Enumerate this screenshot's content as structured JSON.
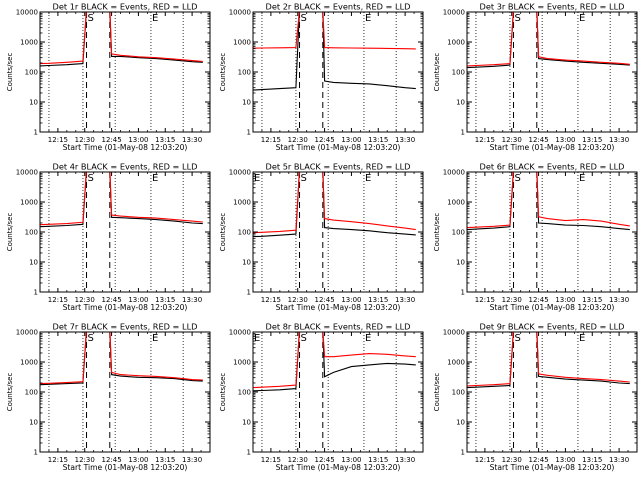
{
  "figure": {
    "background": "#ffffff",
    "axis_color": "#000000"
  },
  "legend": {
    "text": "BLACK = Events, RED = LLD",
    "events_color": "#000000",
    "lld_color": "#ff0000"
  },
  "chart_data": [
    {
      "type": "line",
      "title": "Det 1r BLACK = Events, RED = LLD",
      "xlabel": "Start Time (01-May-08 12:03:20)",
      "ylabel": "Counts/sec",
      "yscale": "log",
      "ylim": [
        1,
        10000
      ],
      "xlim": [
        "12:05",
        "13:40"
      ],
      "xticks": [
        "12:15",
        "12:30",
        "12:45",
        "13:00",
        "13:15",
        "13:30"
      ],
      "yticks": [
        "1",
        "10",
        "100",
        "1000",
        "10000"
      ],
      "dotted_lines": [
        "12:10",
        "12:29",
        "12:47",
        "13:07",
        "13:25"
      ],
      "dashed_lines": [
        "12:31",
        "12:44"
      ],
      "markers": [
        {
          "label": "S",
          "x": "12:31"
        },
        {
          "label": "E",
          "x": "13:07"
        }
      ],
      "x": [
        "12:05",
        "12:10",
        "12:20",
        "12:29",
        "12:31",
        "12:44",
        "12:45",
        "12:50",
        "13:00",
        "13:10",
        "13:20",
        "13:30",
        "13:36"
      ],
      "series": [
        {
          "name": "Events",
          "color": "#000000",
          "values": [
            160,
            165,
            175,
            190,
            12000,
            12000,
            330,
            330,
            300,
            280,
            250,
            220,
            210
          ]
        },
        {
          "name": "LLD",
          "color": "#ff0000",
          "values": [
            190,
            195,
            210,
            230,
            12000,
            12000,
            400,
            360,
            320,
            300,
            270,
            240,
            225
          ]
        }
      ]
    },
    {
      "type": "line",
      "title": "Det 2r BLACK = Events, RED = LLD",
      "xlabel": "Start Time (01-May-08 12:03:20)",
      "ylabel": "Counts/sec",
      "yscale": "log",
      "ylim": [
        1,
        10000
      ],
      "xlim": [
        "12:05",
        "13:40"
      ],
      "xticks": [
        "12:15",
        "12:30",
        "12:45",
        "13:00",
        "13:15",
        "13:30"
      ],
      "yticks": [
        "1",
        "10",
        "100",
        "1000",
        "10000"
      ],
      "dotted_lines": [
        "12:10",
        "12:29",
        "12:47",
        "13:07",
        "13:25"
      ],
      "dashed_lines": [
        "12:31",
        "12:44"
      ],
      "markers": [
        {
          "label": "S",
          "x": "12:31"
        },
        {
          "label": "E",
          "x": "13:07"
        }
      ],
      "x": [
        "12:05",
        "12:10",
        "12:20",
        "12:29",
        "12:31",
        "12:44",
        "12:45",
        "12:50",
        "13:00",
        "13:10",
        "13:20",
        "13:30",
        "13:36"
      ],
      "series": [
        {
          "name": "Events",
          "color": "#000000",
          "values": [
            25,
            26,
            28,
            30,
            12000,
            12000,
            50,
            45,
            42,
            40,
            35,
            30,
            28
          ]
        },
        {
          "name": "LLD",
          "color": "#ff0000",
          "values": [
            620,
            630,
            640,
            650,
            12000,
            12000,
            650,
            640,
            630,
            620,
            610,
            600,
            590
          ]
        }
      ]
    },
    {
      "type": "line",
      "title": "Det 3r BLACK = Events, RED = LLD",
      "xlabel": "Start Time (01-May-08 12:03:20)",
      "ylabel": "Counts/sec",
      "yscale": "log",
      "ylim": [
        1,
        10000
      ],
      "xlim": [
        "12:05",
        "13:40"
      ],
      "xticks": [
        "12:15",
        "12:30",
        "12:45",
        "13:00",
        "13:15",
        "13:30"
      ],
      "yticks": [
        "1",
        "10",
        "100",
        "1000",
        "10000"
      ],
      "dotted_lines": [
        "12:10",
        "12:29",
        "12:47",
        "13:07",
        "13:25"
      ],
      "dashed_lines": [
        "12:31",
        "12:44"
      ],
      "markers": [
        {
          "label": "S",
          "x": "12:31"
        },
        {
          "label": "E",
          "x": "13:07"
        }
      ],
      "x": [
        "12:05",
        "12:10",
        "12:20",
        "12:29",
        "12:31",
        "12:44",
        "12:45",
        "12:50",
        "13:00",
        "13:10",
        "13:20",
        "13:30",
        "13:36"
      ],
      "series": [
        {
          "name": "Events",
          "color": "#000000",
          "values": [
            140,
            145,
            155,
            170,
            12000,
            12000,
            280,
            260,
            230,
            210,
            195,
            180,
            170
          ]
        },
        {
          "name": "LLD",
          "color": "#ff0000",
          "values": [
            160,
            165,
            175,
            190,
            12000,
            12000,
            320,
            280,
            250,
            230,
            210,
            195,
            180
          ]
        }
      ]
    },
    {
      "type": "line",
      "title": "Det 4r BLACK = Events, RED = LLD",
      "xlabel": "Start Time (01-May-08 12:03:20)",
      "ylabel": "Counts/sec",
      "yscale": "log",
      "ylim": [
        1,
        10000
      ],
      "xlim": [
        "12:05",
        "13:40"
      ],
      "xticks": [
        "12:15",
        "12:30",
        "12:45",
        "13:00",
        "13:15",
        "13:30"
      ],
      "yticks": [
        "1",
        "10",
        "100",
        "1000",
        "10000"
      ],
      "dotted_lines": [
        "12:10",
        "12:29",
        "12:47",
        "13:07",
        "13:25"
      ],
      "dashed_lines": [
        "12:31",
        "12:44"
      ],
      "markers": [
        {
          "label": "S",
          "x": "12:31"
        },
        {
          "label": "E",
          "x": "13:07"
        }
      ],
      "x": [
        "12:05",
        "12:10",
        "12:20",
        "12:29",
        "12:31",
        "12:44",
        "12:45",
        "12:50",
        "13:00",
        "13:10",
        "13:20",
        "13:30",
        "13:36"
      ],
      "series": [
        {
          "name": "Events",
          "color": "#000000",
          "values": [
            150,
            155,
            165,
            180,
            12000,
            12000,
            310,
            300,
            280,
            260,
            230,
            200,
            190
          ]
        },
        {
          "name": "LLD",
          "color": "#ff0000",
          "values": [
            175,
            180,
            190,
            210,
            12000,
            12000,
            370,
            340,
            310,
            290,
            260,
            230,
            215
          ]
        }
      ]
    },
    {
      "type": "line",
      "title": "Det 5r BLACK = Events, RED = LLD",
      "xlabel": "Start Time (01-May-08 12:03:20)",
      "ylabel": "Counts/sec",
      "yscale": "log",
      "ylim": [
        1,
        10000
      ],
      "xlim": [
        "12:05",
        "13:40"
      ],
      "xticks": [
        "12:15",
        "12:30",
        "12:45",
        "13:00",
        "13:15",
        "13:30"
      ],
      "yticks": [
        "1",
        "10",
        "100",
        "1000",
        "10000"
      ],
      "dotted_lines": [
        "12:10",
        "12:29",
        "12:47",
        "13:07",
        "13:25"
      ],
      "dashed_lines": [
        "12:31",
        "12:44"
      ],
      "markers": [
        {
          "label": "E",
          "x": "12:05"
        },
        {
          "label": "S",
          "x": "12:31"
        },
        {
          "label": "E",
          "x": "13:07"
        }
      ],
      "x": [
        "12:05",
        "12:10",
        "12:20",
        "12:29",
        "12:31",
        "12:44",
        "12:45",
        "12:50",
        "13:00",
        "13:10",
        "13:20",
        "13:30",
        "13:36"
      ],
      "series": [
        {
          "name": "Events",
          "color": "#000000",
          "values": [
            70,
            72,
            78,
            85,
            12000,
            12000,
            140,
            130,
            120,
            110,
            95,
            85,
            80
          ]
        },
        {
          "name": "LLD",
          "color": "#ff0000",
          "values": [
            95,
            98,
            105,
            115,
            12000,
            12000,
            280,
            250,
            220,
            190,
            160,
            135,
            120
          ]
        }
      ]
    },
    {
      "type": "line",
      "title": "Det 6r BLACK = Events, RED = LLD",
      "xlabel": "Start Time (01-May-08 12:03:20)",
      "ylabel": "Counts/sec",
      "yscale": "log",
      "ylim": [
        1,
        10000
      ],
      "xlim": [
        "12:05",
        "13:40"
      ],
      "xticks": [
        "12:15",
        "12:30",
        "12:45",
        "13:00",
        "13:15",
        "13:30"
      ],
      "yticks": [
        "1",
        "10",
        "100",
        "1000",
        "10000"
      ],
      "dotted_lines": [
        "12:10",
        "12:29",
        "12:47",
        "13:07",
        "13:25"
      ],
      "dashed_lines": [
        "12:31",
        "12:44"
      ],
      "markers": [
        {
          "label": "S",
          "x": "12:31"
        },
        {
          "label": "E",
          "x": "13:07"
        }
      ],
      "x": [
        "12:05",
        "12:10",
        "12:20",
        "12:29",
        "12:31",
        "12:44",
        "12:45",
        "12:50",
        "13:00",
        "13:10",
        "13:20",
        "13:30",
        "13:36"
      ],
      "series": [
        {
          "name": "Events",
          "color": "#000000",
          "values": [
            120,
            125,
            135,
            150,
            12000,
            12000,
            200,
            190,
            170,
            165,
            150,
            130,
            120
          ]
        },
        {
          "name": "LLD",
          "color": "#ff0000",
          "values": [
            140,
            145,
            155,
            170,
            12000,
            12000,
            320,
            280,
            240,
            260,
            230,
            180,
            160
          ]
        }
      ]
    },
    {
      "type": "line",
      "title": "Det 7r BLACK = Events, RED = LLD",
      "xlabel": "Start Time (01-May-08 12:03:20)",
      "ylabel": "Counts/sec",
      "yscale": "log",
      "ylim": [
        1,
        10000
      ],
      "xlim": [
        "12:05",
        "13:40"
      ],
      "xticks": [
        "12:15",
        "12:30",
        "12:45",
        "13:00",
        "13:15",
        "13:30"
      ],
      "yticks": [
        "1",
        "10",
        "100",
        "1000",
        "10000"
      ],
      "dotted_lines": [
        "12:10",
        "12:29",
        "12:47",
        "13:07",
        "13:25"
      ],
      "dashed_lines": [
        "12:31",
        "12:44"
      ],
      "markers": [
        {
          "label": "S",
          "x": "12:31"
        },
        {
          "label": "E",
          "x": "13:07"
        }
      ],
      "x": [
        "12:05",
        "12:10",
        "12:20",
        "12:29",
        "12:31",
        "12:44",
        "12:45",
        "12:50",
        "13:00",
        "13:10",
        "13:20",
        "13:30",
        "13:36"
      ],
      "series": [
        {
          "name": "Events",
          "color": "#000000",
          "values": [
            175,
            180,
            190,
            200,
            12000,
            12000,
            380,
            340,
            310,
            300,
            280,
            240,
            230
          ]
        },
        {
          "name": "LLD",
          "color": "#ff0000",
          "values": [
            190,
            195,
            205,
            220,
            12000,
            12000,
            450,
            380,
            350,
            330,
            300,
            260,
            250
          ]
        }
      ]
    },
    {
      "type": "line",
      "title": "Det 8r BLACK = Events, RED = LLD",
      "xlabel": "Start Time (01-May-08 12:03:20)",
      "ylabel": "Counts/sec",
      "yscale": "log",
      "ylim": [
        1,
        10000
      ],
      "xlim": [
        "12:05",
        "13:40"
      ],
      "xticks": [
        "12:15",
        "12:30",
        "12:45",
        "13:00",
        "13:15",
        "13:30"
      ],
      "yticks": [
        "1",
        "10",
        "100",
        "1000",
        "10000"
      ],
      "dotted_lines": [
        "12:10",
        "12:29",
        "12:47",
        "13:07",
        "13:25"
      ],
      "dashed_lines": [
        "12:31",
        "12:44"
      ],
      "markers": [
        {
          "label": "E",
          "x": "12:05"
        },
        {
          "label": "S",
          "x": "12:31"
        },
        {
          "label": "E",
          "x": "13:07"
        }
      ],
      "x": [
        "12:05",
        "12:10",
        "12:20",
        "12:29",
        "12:31",
        "12:44",
        "12:45",
        "12:50",
        "13:00",
        "13:10",
        "13:20",
        "13:30",
        "13:36"
      ],
      "series": [
        {
          "name": "Events",
          "color": "#000000",
          "values": [
            110,
            112,
            118,
            130,
            12000,
            12000,
            320,
            450,
            700,
            800,
            900,
            850,
            800
          ]
        },
        {
          "name": "LLD",
          "color": "#ff0000",
          "values": [
            140,
            145,
            155,
            170,
            12000,
            12000,
            1500,
            1500,
            1700,
            1900,
            1800,
            1600,
            1500
          ]
        }
      ]
    },
    {
      "type": "line",
      "title": "Det 9r BLACK = Events, RED = LLD",
      "xlabel": "Start Time (01-May-08 12:03:20)",
      "ylabel": "Counts/sec",
      "yscale": "log",
      "ylim": [
        1,
        10000
      ],
      "xlim": [
        "12:05",
        "13:40"
      ],
      "xticks": [
        "12:15",
        "12:30",
        "12:45",
        "13:00",
        "13:15",
        "13:30"
      ],
      "yticks": [
        "1",
        "10",
        "100",
        "1000",
        "10000"
      ],
      "dotted_lines": [
        "12:10",
        "12:29",
        "12:47",
        "13:07",
        "13:25"
      ],
      "dashed_lines": [
        "12:31",
        "12:44"
      ],
      "markers": [
        {
          "label": "S",
          "x": "12:31"
        },
        {
          "label": "E",
          "x": "13:07"
        }
      ],
      "x": [
        "12:05",
        "12:10",
        "12:20",
        "12:29",
        "12:31",
        "12:44",
        "12:45",
        "12:50",
        "13:00",
        "13:10",
        "13:20",
        "13:30",
        "13:36"
      ],
      "series": [
        {
          "name": "Events",
          "color": "#000000",
          "values": [
            140,
            145,
            155,
            165,
            12000,
            12000,
            330,
            310,
            270,
            250,
            230,
            200,
            190
          ]
        },
        {
          "name": "LLD",
          "color": "#ff0000",
          "values": [
            160,
            165,
            175,
            190,
            12000,
            12000,
            400,
            360,
            310,
            280,
            260,
            230,
            215
          ]
        }
      ]
    }
  ]
}
